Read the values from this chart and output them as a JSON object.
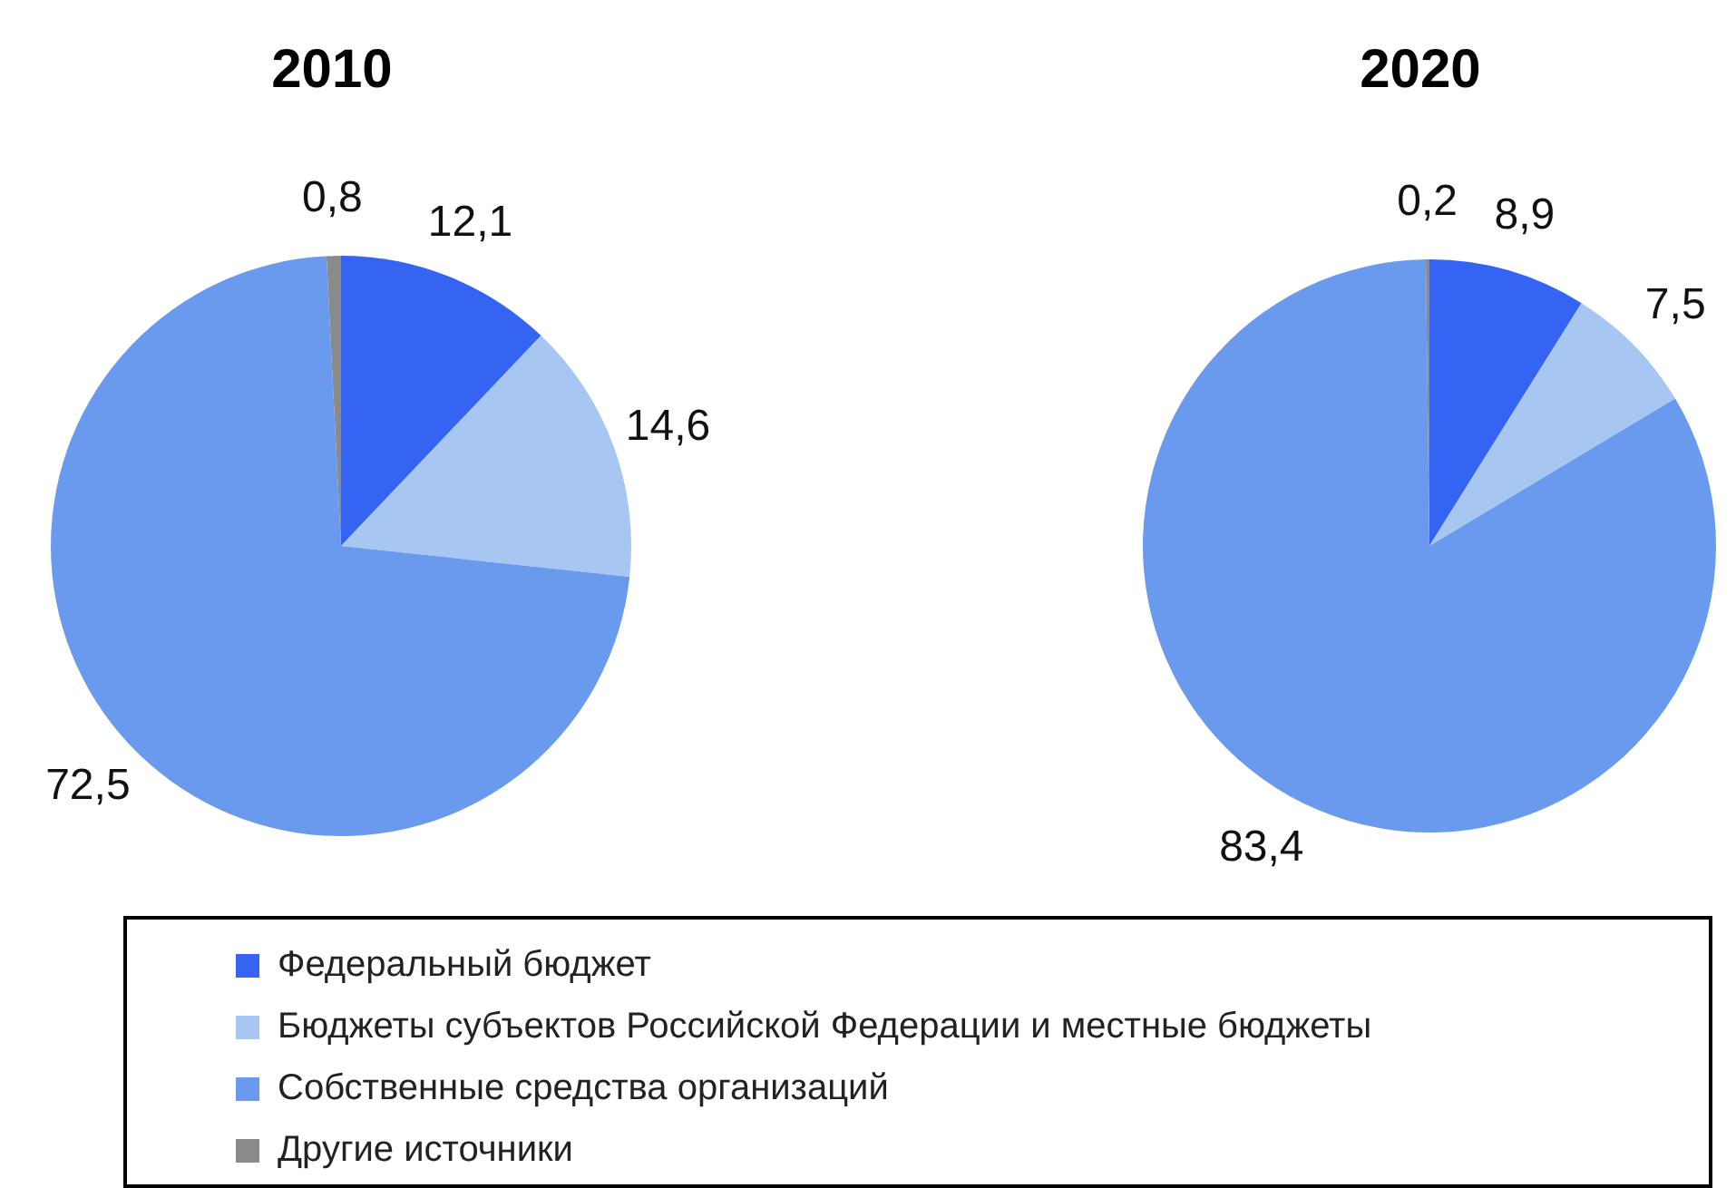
{
  "chart_data": [
    {
      "type": "pie",
      "title": "2010",
      "categories": [
        "Федеральный бюджет",
        "Бюджеты субъектов Российской Федерации и местные бюджеты",
        "Собственные средства организаций",
        "Другие источники"
      ],
      "values": [
        12.1,
        14.6,
        72.5,
        0.8
      ],
      "value_labels": [
        "12,1",
        "14,6",
        "72,5",
        "0,8"
      ],
      "colors": [
        "#3563f2",
        "#a8c6f2",
        "#6a9aee",
        "#8a8a8a"
      ],
      "legend": "bottom"
    },
    {
      "type": "pie",
      "title": "2020",
      "categories": [
        null,
        null,
        null,
        null
      ],
      "values": [
        8.9,
        7.5,
        83.4,
        0.2
      ],
      "value_labels": [
        "8,9",
        "7,5",
        "83,4",
        "0,2"
      ],
      "colors": [
        "#3563f2",
        "#a8c6f2",
        "#6a9aee",
        "#8a8a8a"
      ]
    }
  ]
}
